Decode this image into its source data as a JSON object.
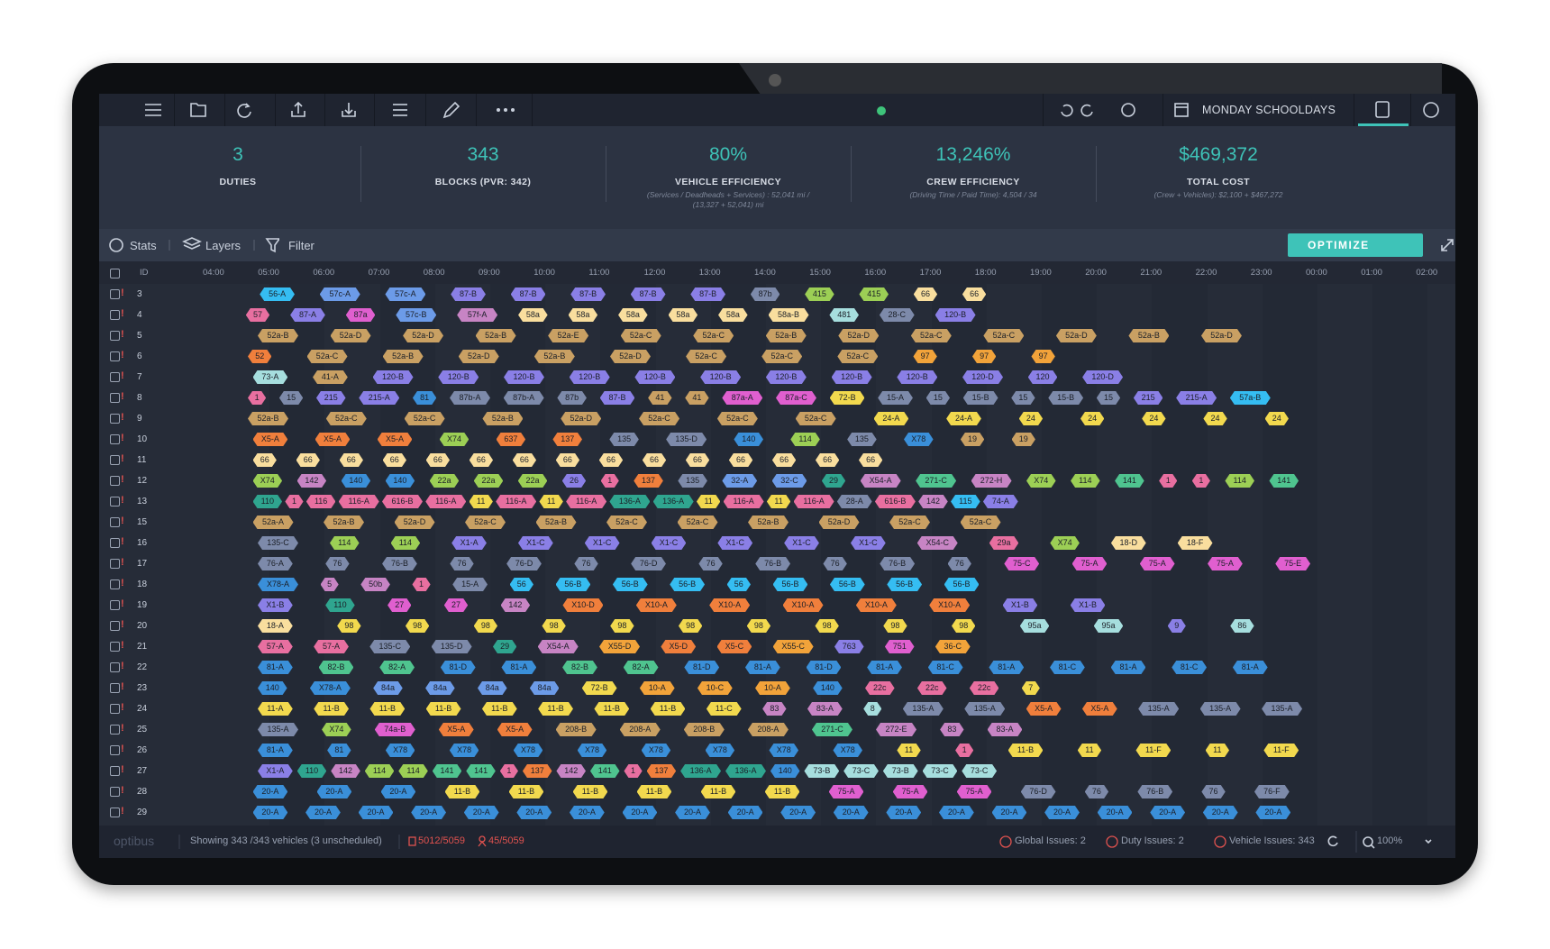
{
  "toolbar": {
    "schedule": "MONDAY SCHOOLDAYS"
  },
  "stats": [
    {
      "value": "3",
      "label": "DUTIES"
    },
    {
      "value": "343",
      "label": "BLOCKS (PVR: 342)"
    },
    {
      "value": "80%",
      "label": "VEHICLE EFFICIENCY",
      "note": "(Services / Deadheads + Services) : 52,041 mi / (13,327 + 52,041) mi"
    },
    {
      "value": "13,246%",
      "label": "CREW EFFICIENCY",
      "note": "(Driving Time / Paid Time): 4,504 / 34"
    },
    {
      "value": "$469,372",
      "label": "TOTAL COST",
      "note": "(Crew + Vehicles): $2,100 + $467,272"
    }
  ],
  "tabs": [
    "Stats",
    "Layers",
    "Filter"
  ],
  "optimize": "OPTIMIZE",
  "timeline": {
    "id_header": "ID",
    "hours": [
      "04:00",
      "05:00",
      "06:00",
      "07:00",
      "08:00",
      "09:00",
      "10:00",
      "11:00",
      "12:00",
      "13:00",
      "14:00",
      "15:00",
      "16:00",
      "17:00",
      "18:00",
      "19:00",
      "20:00",
      "21:00",
      "22:00",
      "23:00",
      "00:00",
      "01:00",
      "02:00"
    ],
    "rows": [
      {
        "id": "3",
        "blocks": [
          "56-A",
          "57c-A",
          "57c-A",
          "87-B",
          "87-B",
          "87-B",
          "87-B",
          "87-B",
          "87b",
          "415",
          "415",
          "66",
          "66"
        ]
      },
      {
        "id": "4",
        "blocks": [
          "57",
          "87-A",
          "87a",
          "57c-B",
          "57f-A",
          "58a",
          "58a",
          "58a",
          "58a",
          "58a",
          "58a-B",
          "481",
          "28-C",
          "120-B"
        ]
      },
      {
        "id": "5",
        "blocks": [
          "52a-B",
          "52a-D",
          "52a-D",
          "52a-B",
          "52a-E",
          "52a-C",
          "52a-C",
          "52a-B",
          "52a-D",
          "52a-C",
          "52a-C",
          "52a-D",
          "52a-B",
          "52a-D"
        ]
      },
      {
        "id": "6",
        "blocks": [
          "52",
          "52a-C",
          "52a-B",
          "52a-D",
          "52a-B",
          "52a-D",
          "52a-C",
          "52a-C",
          "52a-C",
          "97",
          "97",
          "97"
        ]
      },
      {
        "id": "7",
        "blocks": [
          "73-A",
          "41-A",
          "120-B",
          "120-B",
          "120-B",
          "120-B",
          "120-B",
          "120-B",
          "120-B",
          "120-B",
          "120-B",
          "120-D",
          "120",
          "120-D"
        ]
      },
      {
        "id": "8",
        "blocks": [
          "1",
          "15",
          "215",
          "215-A",
          "81",
          "87b-A",
          "87b-A",
          "87b",
          "87-B",
          "41",
          "41",
          "87a-A",
          "87a-C",
          "72-B",
          "15-A",
          "15",
          "15-B",
          "15",
          "15-B",
          "15",
          "215",
          "215-A",
          "57a-B"
        ]
      },
      {
        "id": "9",
        "blocks": [
          "52a-B",
          "52a-C",
          "52a-C",
          "52a-B",
          "52a-D",
          "52a-C",
          "52a-C",
          "52a-C",
          "24-A",
          "24-A",
          "24",
          "24",
          "24",
          "24",
          "24"
        ]
      },
      {
        "id": "10",
        "blocks": [
          "X5-A",
          "X5-A",
          "X5-A",
          "X74",
          "637",
          "137",
          "135",
          "135-D",
          "140",
          "114",
          "135",
          "X78",
          "19",
          "19"
        ]
      },
      {
        "id": "11",
        "blocks": [
          "66",
          "66",
          "66",
          "66",
          "66",
          "66",
          "66",
          "66",
          "66",
          "66",
          "66",
          "66",
          "66",
          "66",
          "66"
        ]
      },
      {
        "id": "12",
        "blocks": [
          "X74",
          "142",
          "140",
          "140",
          "22a",
          "22a",
          "22a",
          "26",
          "1",
          "137",
          "135",
          "32-A",
          "32-C",
          "29",
          "X54-A",
          "271-C",
          "272-H",
          "X74",
          "114",
          "141",
          "1",
          "1",
          "114",
          "141"
        ]
      },
      {
        "id": "13",
        "blocks": [
          "110",
          "1",
          "116",
          "116-A",
          "616-B",
          "116-A",
          "11",
          "116-A",
          "11",
          "116-A",
          "136-A",
          "136-A",
          "11",
          "116-A",
          "11",
          "116-A",
          "28-A",
          "616-B",
          "142",
          "115",
          "74-A"
        ]
      },
      {
        "id": "15",
        "blocks": [
          "52a-A",
          "52a-B",
          "52a-D",
          "52a-C",
          "52a-B",
          "52a-C",
          "52a-C",
          "52a-B",
          "52a-D",
          "52a-C",
          "52a-C"
        ]
      },
      {
        "id": "16",
        "blocks": [
          "135-C",
          "114",
          "114",
          "X1-A",
          "X1-C",
          "X1-C",
          "X1-C",
          "X1-C",
          "X1-C",
          "X1-C",
          "X54-C",
          "29a",
          "X74",
          "18-D",
          "18-F"
        ]
      },
      {
        "id": "17",
        "blocks": [
          "76-A",
          "76",
          "76-B",
          "76",
          "76-D",
          "76",
          "76-D",
          "76",
          "76-B",
          "76",
          "76-B",
          "76",
          "75-C",
          "75-A",
          "75-A",
          "75-A",
          "75-E"
        ]
      },
      {
        "id": "18",
        "blocks": [
          "X78-A",
          "5",
          "50b",
          "1",
          "15-A",
          "56",
          "56-B",
          "56-B",
          "56-B",
          "56",
          "56-B",
          "56-B",
          "56-B",
          "56-B"
        ]
      },
      {
        "id": "19",
        "blocks": [
          "X1-B",
          "110",
          "27",
          "27",
          "142",
          "X10-D",
          "X10-A",
          "X10-A",
          "X10-A",
          "X10-A",
          "X10-A",
          "X1-B",
          "X1-B"
        ]
      },
      {
        "id": "20",
        "blocks": [
          "18-A",
          "98",
          "98",
          "98",
          "98",
          "98",
          "98",
          "98",
          "98",
          "98",
          "98",
          "95a",
          "95a",
          "9",
          "86"
        ]
      },
      {
        "id": "21",
        "blocks": [
          "57-A",
          "57-A",
          "135-C",
          "135-D",
          "29",
          "X54-A",
          "X55-D",
          "X5-D",
          "X5-C",
          "X55-C",
          "763",
          "751",
          "36-C"
        ]
      },
      {
        "id": "22",
        "blocks": [
          "81-A",
          "82-B",
          "82-A",
          "81-D",
          "81-A",
          "82-B",
          "82-A",
          "81-D",
          "81-A",
          "81-D",
          "81-A",
          "81-C",
          "81-A",
          "81-C",
          "81-A",
          "81-C",
          "81-A"
        ]
      },
      {
        "id": "23",
        "blocks": [
          "140",
          "X78-A",
          "84a",
          "84a",
          "84a",
          "84a",
          "72-B",
          "10-A",
          "10-C",
          "10-A",
          "140",
          "22c",
          "22c",
          "22c",
          "7"
        ]
      },
      {
        "id": "24",
        "blocks": [
          "11-A",
          "11-B",
          "11-B",
          "11-B",
          "11-B",
          "11-B",
          "11-B",
          "11-B",
          "11-C",
          "83",
          "83-A",
          "8",
          "135-A",
          "135-A",
          "X5-A",
          "X5-A",
          "135-A",
          "135-A",
          "135-A"
        ]
      },
      {
        "id": "25",
        "blocks": [
          "135-A",
          "X74",
          "74a-B",
          "X5-A",
          "X5-A",
          "208-B",
          "208-A",
          "208-B",
          "208-A",
          "271-C",
          "272-E",
          "83",
          "83-A"
        ]
      },
      {
        "id": "26",
        "blocks": [
          "81-A",
          "81",
          "X78",
          "X78",
          "X78",
          "X78",
          "X78",
          "X78",
          "X78",
          "X78",
          "11",
          "1",
          "11-B",
          "11",
          "11-F",
          "11",
          "11-F"
        ]
      },
      {
        "id": "27",
        "blocks": [
          "X1-A",
          "110",
          "142",
          "114",
          "114",
          "141",
          "141",
          "1",
          "137",
          "142",
          "141",
          "1",
          "137",
          "136-A",
          "136-A",
          "140",
          "73-B",
          "73-C",
          "73-B",
          "73-C",
          "73-C"
        ]
      },
      {
        "id": "28",
        "blocks": [
          "20-A",
          "20-A",
          "20-A",
          "11-B",
          "11-B",
          "11-B",
          "11-B",
          "11-B",
          "11-B",
          "75-A",
          "75-A",
          "75-A",
          "76-D",
          "76",
          "76-B",
          "76",
          "76-F"
        ]
      },
      {
        "id": "29",
        "blocks": [
          "20-A",
          "20-A",
          "20-A",
          "20-A",
          "20-A",
          "20-A",
          "20-A",
          "20-A",
          "20-A",
          "20-A",
          "20-A",
          "20-A",
          "20-A",
          "20-A",
          "20-A",
          "20-A",
          "20-A",
          "20-A",
          "20-A",
          "20-A"
        ]
      }
    ]
  },
  "footer": {
    "brand": "optibus",
    "showing": "Showing 343 /343 vehicles (3 unscheduled)",
    "vehicles_count": "5012/5059",
    "crew_count": "45/5059",
    "global_issues": "Global Issues: 2",
    "duty_issues": "Duty Issues: 2",
    "vehicle_issues": "Vehicle Issues: 343",
    "zoom": "100%"
  }
}
